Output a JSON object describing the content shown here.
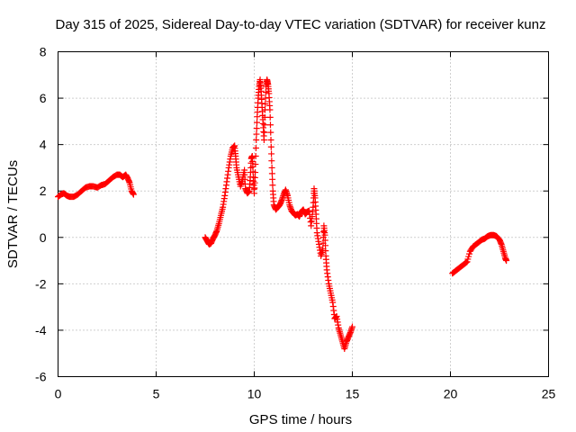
{
  "chart_data": {
    "type": "scatter",
    "title": "Day 315 of 2025, Sidereal Day-to-day VTEC variation (SDTVAR) for receiver kunz",
    "xlabel": "GPS time / hours",
    "ylabel": "SDTVAR / TECUs",
    "xlim": [
      0,
      25
    ],
    "ylim": [
      -6,
      8
    ],
    "xticks": [
      "0",
      "5",
      "10",
      "15",
      "20",
      "25"
    ],
    "yticks": [
      "-6",
      "-4",
      "-2",
      "0",
      "2",
      "4",
      "6",
      "8"
    ],
    "grid": true,
    "marker": "plus",
    "color": "#ff0000",
    "series": [
      {
        "name": "SDTVAR",
        "segments": [
          [
            [
              0.0,
              1.75
            ],
            [
              0.15,
              1.85
            ],
            [
              0.3,
              1.9
            ],
            [
              0.45,
              1.8
            ],
            [
              0.6,
              1.75
            ],
            [
              0.8,
              1.75
            ],
            [
              1.0,
              1.85
            ],
            [
              1.2,
              2.0
            ],
            [
              1.4,
              2.15
            ],
            [
              1.6,
              2.2
            ],
            [
              1.8,
              2.2
            ],
            [
              2.0,
              2.15
            ],
            [
              2.2,
              2.25
            ],
            [
              2.4,
              2.3
            ],
            [
              2.6,
              2.45
            ],
            [
              2.8,
              2.6
            ],
            [
              3.0,
              2.7
            ],
            [
              3.15,
              2.7
            ],
            [
              3.3,
              2.6
            ],
            [
              3.45,
              2.7
            ],
            [
              3.55,
              2.55
            ],
            [
              3.65,
              2.35
            ],
            [
              3.75,
              2.0
            ],
            [
              3.85,
              1.85
            ]
          ],
          [
            [
              7.5,
              0.0
            ],
            [
              7.6,
              -0.15
            ],
            [
              7.7,
              -0.3
            ],
            [
              7.8,
              -0.25
            ],
            [
              7.9,
              -0.05
            ],
            [
              8.0,
              0.1
            ],
            [
              8.1,
              0.3
            ],
            [
              8.2,
              0.6
            ],
            [
              8.3,
              0.95
            ],
            [
              8.4,
              1.3
            ],
            [
              8.5,
              1.8
            ],
            [
              8.6,
              2.4
            ],
            [
              8.7,
              3.0
            ],
            [
              8.8,
              3.5
            ],
            [
              8.9,
              3.85
            ],
            [
              9.0,
              3.95
            ],
            [
              9.05,
              3.5
            ],
            [
              9.1,
              3.0
            ],
            [
              9.2,
              2.6
            ],
            [
              9.3,
              2.2
            ],
            [
              9.4,
              2.5
            ],
            [
              9.5,
              2.9
            ],
            [
              9.55,
              2.1
            ],
            [
              9.65,
              1.9
            ],
            [
              9.75,
              2.0
            ],
            [
              9.8,
              2.6
            ],
            [
              9.85,
              3.4
            ],
            [
              9.9,
              3.5
            ],
            [
              9.95,
              2.6
            ],
            [
              10.0,
              1.9
            ],
            [
              10.05,
              2.8
            ],
            [
              10.1,
              4.2
            ],
            [
              10.15,
              5.2
            ],
            [
              10.2,
              6.0
            ],
            [
              10.25,
              6.5
            ],
            [
              10.3,
              6.8
            ],
            [
              10.35,
              6.3
            ],
            [
              10.4,
              5.6
            ],
            [
              10.45,
              4.9
            ],
            [
              10.5,
              4.2
            ],
            [
              10.55,
              5.5
            ],
            [
              10.6,
              6.5
            ],
            [
              10.65,
              6.8
            ],
            [
              10.7,
              6.6
            ],
            [
              10.75,
              6.2
            ],
            [
              10.8,
              5.5
            ],
            [
              10.85,
              4.2
            ],
            [
              10.9,
              3.0
            ],
            [
              10.95,
              2.0
            ],
            [
              11.0,
              1.4
            ],
            [
              11.1,
              1.2
            ],
            [
              11.2,
              1.3
            ],
            [
              11.3,
              1.4
            ],
            [
              11.4,
              1.6
            ],
            [
              11.5,
              1.85
            ],
            [
              11.6,
              2.05
            ],
            [
              11.7,
              1.8
            ],
            [
              11.8,
              1.4
            ],
            [
              11.9,
              1.15
            ],
            [
              12.0,
              1.05
            ],
            [
              12.1,
              0.95
            ],
            [
              12.2,
              1.0
            ],
            [
              12.3,
              0.9
            ],
            [
              12.4,
              1.1
            ],
            [
              12.5,
              1.2
            ],
            [
              12.6,
              1.0
            ],
            [
              12.7,
              1.1
            ],
            [
              12.8,
              1.15
            ],
            [
              12.9,
              0.5
            ],
            [
              13.0,
              1.3
            ],
            [
              13.05,
              2.1
            ],
            [
              13.1,
              1.7
            ],
            [
              13.15,
              1.0
            ],
            [
              13.2,
              0.2
            ],
            [
              13.3,
              -0.3
            ],
            [
              13.4,
              -0.8
            ],
            [
              13.5,
              -0.5
            ],
            [
              13.55,
              0.5
            ],
            [
              13.6,
              0.1
            ],
            [
              13.65,
              -0.8
            ],
            [
              13.7,
              -1.4
            ],
            [
              13.8,
              -2.0
            ],
            [
              13.9,
              -2.4
            ],
            [
              14.0,
              -2.8
            ],
            [
              14.1,
              -3.5
            ],
            [
              14.2,
              -3.4
            ],
            [
              14.3,
              -3.9
            ],
            [
              14.4,
              -4.2
            ],
            [
              14.5,
              -4.5
            ],
            [
              14.6,
              -4.8
            ],
            [
              14.7,
              -4.5
            ],
            [
              14.8,
              -4.3
            ],
            [
              14.9,
              -4.1
            ],
            [
              15.0,
              -3.85
            ]
          ],
          [
            [
              20.1,
              -1.55
            ],
            [
              20.25,
              -1.45
            ],
            [
              20.4,
              -1.35
            ],
            [
              20.55,
              -1.25
            ],
            [
              20.7,
              -1.15
            ],
            [
              20.85,
              -1.05
            ],
            [
              21.0,
              -0.6
            ],
            [
              21.15,
              -0.4
            ],
            [
              21.3,
              -0.3
            ],
            [
              21.45,
              -0.2
            ],
            [
              21.6,
              -0.1
            ],
            [
              21.75,
              -0.05
            ],
            [
              21.9,
              0.05
            ],
            [
              22.05,
              0.1
            ],
            [
              22.2,
              0.1
            ],
            [
              22.35,
              0.05
            ],
            [
              22.5,
              -0.1
            ],
            [
              22.6,
              -0.3
            ],
            [
              22.7,
              -0.6
            ],
            [
              22.8,
              -0.9
            ],
            [
              22.85,
              -1.0
            ]
          ]
        ]
      }
    ]
  }
}
